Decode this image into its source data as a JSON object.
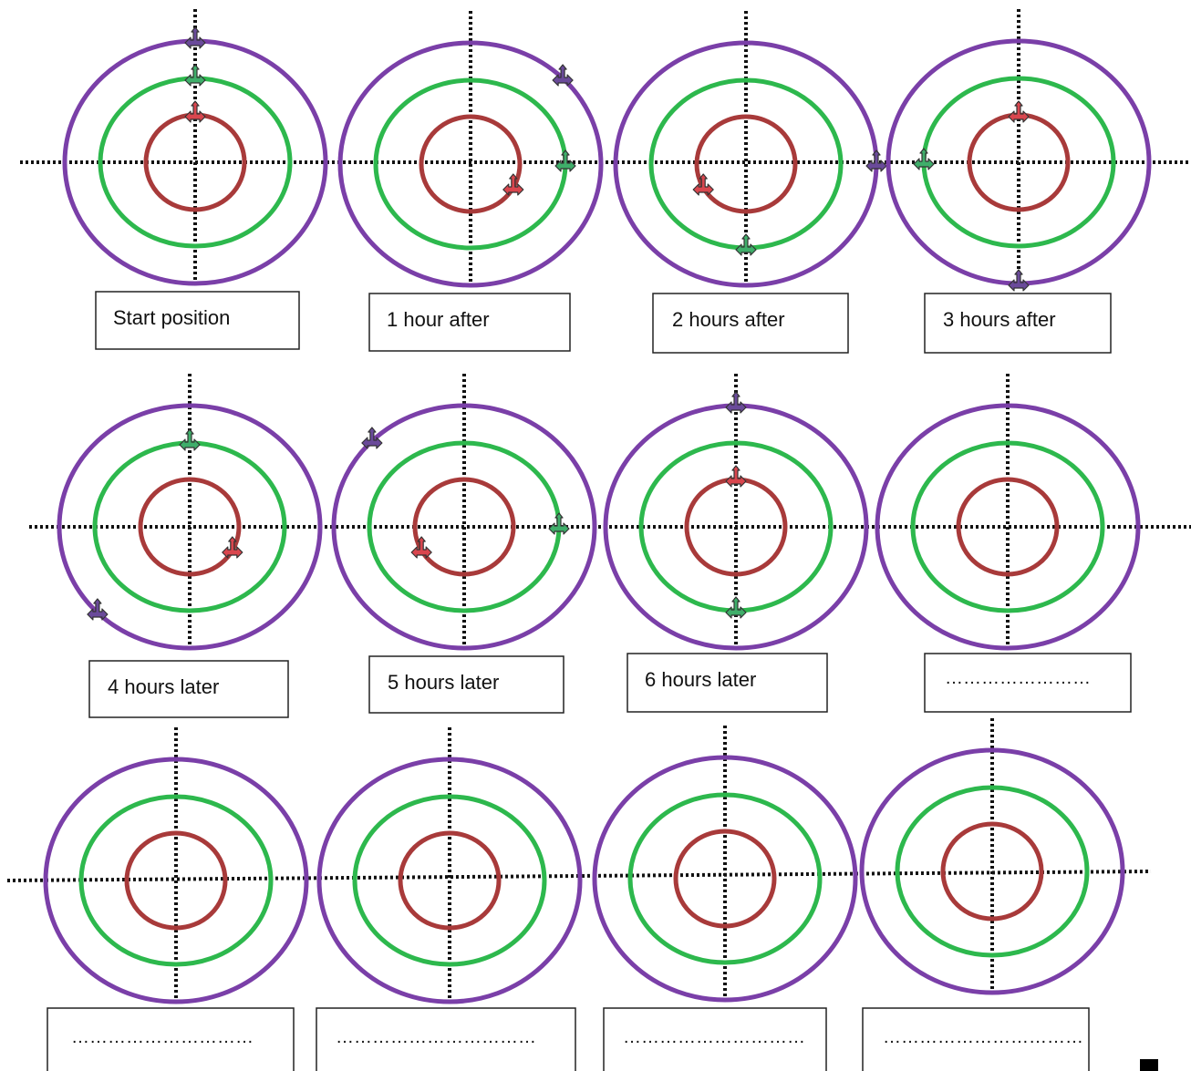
{
  "colors": {
    "inner_ring": "#a83a3a",
    "middle_ring": "#2db84d",
    "outer_ring": "#7a3fa8",
    "axis": "#111111",
    "box_border": "#222222",
    "marker_inner": "#d9464e",
    "marker_middle": "#3fae6a",
    "marker_outer": "#6a4a9a"
  },
  "panels": [
    {
      "label": "Start position",
      "markers": [
        {
          "ring": "inner",
          "angle": 90
        },
        {
          "ring": "middle",
          "angle": 90
        },
        {
          "ring": "outer",
          "angle": 90
        }
      ]
    },
    {
      "label": "1 hour after",
      "markers": [
        {
          "ring": "inner",
          "angle": -30
        },
        {
          "ring": "middle",
          "angle": 0
        },
        {
          "ring": "outer",
          "angle": 45
        }
      ]
    },
    {
      "label": "2 hours after",
      "markers": [
        {
          "ring": "inner",
          "angle": -150
        },
        {
          "ring": "middle",
          "angle": -90
        },
        {
          "ring": "outer",
          "angle": 0
        }
      ]
    },
    {
      "label": "3 hours after",
      "markers": [
        {
          "ring": "inner",
          "angle": 90
        },
        {
          "ring": "middle",
          "angle": 180
        },
        {
          "ring": "outer",
          "angle": -90
        }
      ]
    },
    {
      "label": "4 hours later",
      "markers": [
        {
          "ring": "inner",
          "angle": -30
        },
        {
          "ring": "middle",
          "angle": 90
        },
        {
          "ring": "outer",
          "angle": -135
        }
      ]
    },
    {
      "label": "5 hours later",
      "markers": [
        {
          "ring": "inner",
          "angle": -150
        },
        {
          "ring": "middle",
          "angle": 0
        },
        {
          "ring": "outer",
          "angle": 135
        }
      ]
    },
    {
      "label": "6 hours later",
      "markers": [
        {
          "ring": "inner",
          "angle": 90
        },
        {
          "ring": "middle",
          "angle": -90
        },
        {
          "ring": "outer",
          "angle": 90
        }
      ]
    },
    {
      "label": "……………………",
      "markers": []
    },
    {
      "label": "…………………………",
      "markers": []
    },
    {
      "label": "……………………………",
      "markers": []
    },
    {
      "label": "…………………………",
      "markers": []
    },
    {
      "label": "……………………………",
      "markers": []
    }
  ]
}
